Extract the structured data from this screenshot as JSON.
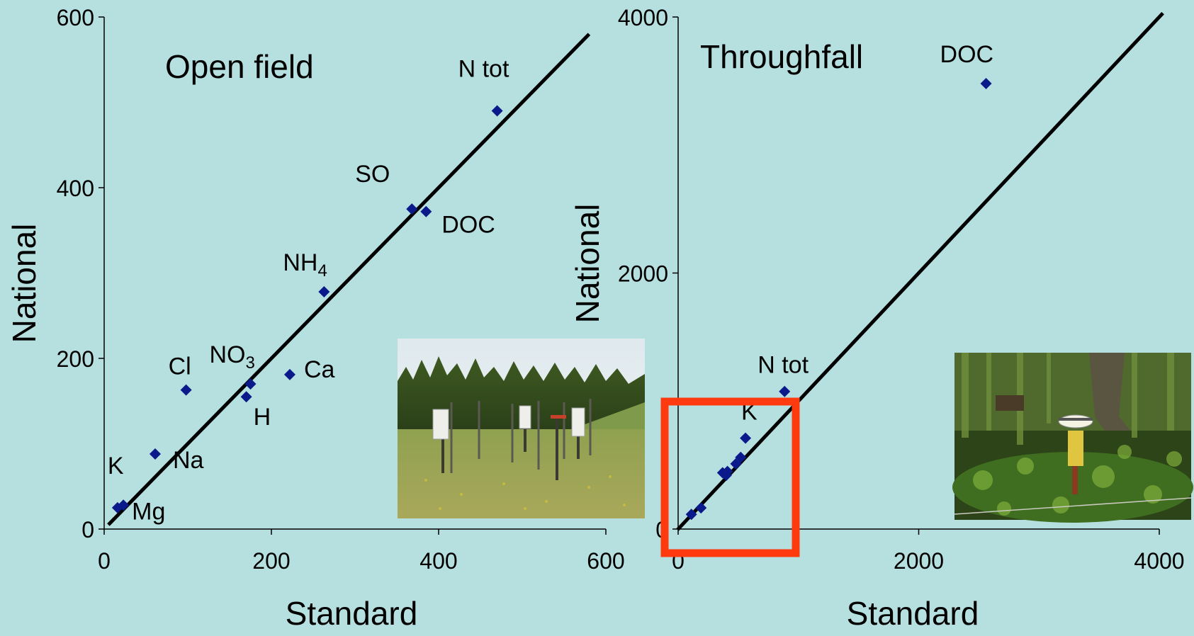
{
  "chart_data": [
    {
      "type": "scatter",
      "title": "Open field",
      "xlabel": "Standard",
      "ylabel": "National",
      "xlim": [
        0,
        600
      ],
      "ylim": [
        0,
        600
      ],
      "x_ticks": [
        "0",
        "200",
        "400",
        "600"
      ],
      "y_ticks": [
        "0",
        "200",
        "400",
        "600"
      ],
      "reference_line": "1:1",
      "points": [
        {
          "label": "N tot",
          "sub": "",
          "x": 470,
          "y": 490
        },
        {
          "label": "SO",
          "sub": "",
          "x": 368,
          "y": 375
        },
        {
          "label": "DOC",
          "sub": "",
          "x": 385,
          "y": 372
        },
        {
          "label": "NH",
          "sub": "4",
          "x": 263,
          "y": 278
        },
        {
          "label": "Ca",
          "sub": "",
          "x": 222,
          "y": 181
        },
        {
          "label": "NO",
          "sub": "3",
          "x": 175,
          "y": 170
        },
        {
          "label": "H",
          "sub": "",
          "x": 170,
          "y": 155
        },
        {
          "label": "Cl",
          "sub": "",
          "x": 98,
          "y": 163
        },
        {
          "label": "Na",
          "sub": "",
          "x": 61,
          "y": 88
        },
        {
          "label": "K",
          "sub": "",
          "x": 16,
          "y": 25
        },
        {
          "label": "Mg",
          "sub": "",
          "x": 23,
          "y": 28
        }
      ]
    },
    {
      "type": "scatter",
      "title": "Throughfall",
      "xlabel": "Standard",
      "ylabel": "National",
      "xlim": [
        0,
        4000
      ],
      "ylim": [
        0,
        4000
      ],
      "x_ticks": [
        "0",
        "2000",
        "4000"
      ],
      "y_ticks": [
        "0",
        "2000",
        "4000"
      ],
      "reference_line": "1:1",
      "points": [
        {
          "label": "DOC",
          "sub": "",
          "x": 2560,
          "y": 3480
        },
        {
          "label": "N tot",
          "sub": "",
          "x": 885,
          "y": 1075
        },
        {
          "label": "K",
          "sub": "",
          "x": 560,
          "y": 710
        },
        {
          "label": "",
          "sub": "",
          "x": 520,
          "y": 560
        },
        {
          "label": "",
          "sub": "",
          "x": 480,
          "y": 510
        },
        {
          "label": "",
          "sub": "",
          "x": 410,
          "y": 450
        },
        {
          "label": "",
          "sub": "",
          "x": 370,
          "y": 440
        },
        {
          "label": "",
          "sub": "",
          "x": 400,
          "y": 420
        },
        {
          "label": "",
          "sub": "",
          "x": 190,
          "y": 165
        },
        {
          "label": "",
          "sub": "",
          "x": 110,
          "y": 115
        }
      ]
    }
  ],
  "highlight_box": {
    "color": "#ff3a0f"
  },
  "colors": {
    "background": "#b6e0e0",
    "marker": "#0a1a8a",
    "line": "#000000"
  },
  "photos": [
    {
      "icon": "open-field-collector-photo"
    },
    {
      "icon": "throughfall-collector-photo"
    }
  ]
}
